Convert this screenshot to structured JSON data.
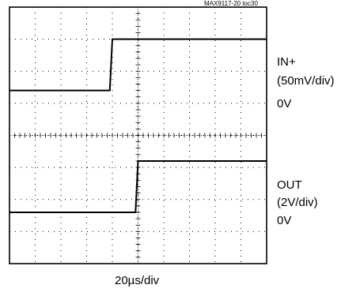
{
  "figure_id": "MAX9117-20 toc30",
  "chart_data": {
    "type": "line",
    "xlabel": "20µs/div",
    "x_divisions": 10,
    "y_divisions": 8,
    "grid": true,
    "series": [
      {
        "name": "IN+",
        "scale": "(50mV/div)",
        "zero_label": "0V",
        "x": [
          0,
          3.9,
          4.0,
          10
        ],
        "y": [
          5.4,
          5.4,
          7.0,
          7.0
        ]
      },
      {
        "name": "OUT",
        "scale": "(2V/div)",
        "zero_label": "0V",
        "x": [
          0,
          4.9,
          5.0,
          10
        ],
        "y": [
          1.6,
          1.6,
          3.2,
          3.2
        ]
      }
    ]
  }
}
